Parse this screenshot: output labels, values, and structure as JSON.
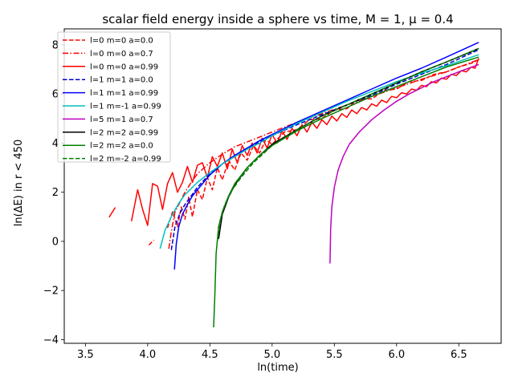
{
  "chart_data": {
    "type": "line",
    "title": "scalar field energy inside a sphere vs time, $M=1, \\mu=0.4$",
    "title_display": "scalar field energy inside a sphere vs time, M = 1, μ = 0.4",
    "xlabel": "ln(time)",
    "ylabel": "ln(ΔE) in r < 450",
    "xlim": [
      3.33,
      6.84
    ],
    "ylim": [
      -4.15,
      8.65
    ],
    "xticks": [
      "3.5",
      "4.0",
      "4.5",
      "5.0",
      "5.5",
      "6.0",
      "6.5"
    ],
    "xtick_values": [
      3.5,
      4.0,
      4.5,
      5.0,
      5.5,
      6.0,
      6.5
    ],
    "yticks": [
      "−4",
      "−2",
      "0",
      "2",
      "4",
      "6",
      "8"
    ],
    "ytick_values": [
      -4,
      -2,
      0,
      2,
      4,
      6,
      8
    ],
    "grid": false,
    "legend_position": "upper-left",
    "series": [
      {
        "name": "l=0 m=0 a=0.0",
        "color": "#ff0000",
        "dash": "dashed",
        "segments": [
          [
            [
              4.01,
              -0.15
            ],
            [
              4.05,
              0.05
            ]
          ],
          [
            [
              4.16,
              0.55
            ],
            [
              4.2,
              1.2
            ],
            [
              4.24,
              0.6
            ],
            [
              4.27,
              1.4
            ],
            [
              4.3,
              0.9
            ],
            [
              4.33,
              1.8
            ],
            [
              4.36,
              1.0
            ],
            [
              4.4,
              2.1
            ],
            [
              4.44,
              1.7
            ],
            [
              4.48,
              2.6
            ],
            [
              4.52,
              2.1
            ],
            [
              4.56,
              3.0
            ],
            [
              4.6,
              2.5
            ],
            [
              4.65,
              3.3
            ],
            [
              4.7,
              2.9
            ],
            [
              4.75,
              3.6
            ],
            [
              4.8,
              3.3
            ],
            [
              4.85,
              3.9
            ],
            [
              4.9,
              3.6
            ],
            [
              4.95,
              4.15
            ],
            [
              5.0,
              3.95
            ],
            [
              5.1,
              4.45
            ],
            [
              5.2,
              4.55
            ],
            [
              5.3,
              4.95
            ],
            [
              5.4,
              5.0
            ],
            [
              5.5,
              5.35
            ],
            [
              5.6,
              5.4
            ],
            [
              5.7,
              5.8
            ],
            [
              5.8,
              5.8
            ],
            [
              5.9,
              6.15
            ],
            [
              6.0,
              6.2
            ],
            [
              6.1,
              6.5
            ],
            [
              6.2,
              6.55
            ],
            [
              6.3,
              6.8
            ],
            [
              6.4,
              6.9
            ],
            [
              6.5,
              7.1
            ],
            [
              6.6,
              7.25
            ],
            [
              6.66,
              7.4
            ]
          ]
        ]
      },
      {
        "name": "l=0 m=0 a=0.7",
        "color": "#ff0000",
        "dash": "dashdot",
        "segments": [
          [
            [
              4.17,
              -0.3
            ],
            [
              4.19,
              0.4
            ],
            [
              4.22,
              1.2
            ],
            [
              4.26,
              1.6
            ],
            [
              4.3,
              2.0
            ],
            [
              4.35,
              2.4
            ],
            [
              4.4,
              2.75
            ],
            [
              4.5,
              3.2
            ],
            [
              4.6,
              3.55
            ],
            [
              4.7,
              3.85
            ],
            [
              4.8,
              4.05
            ],
            [
              4.9,
              4.25
            ],
            [
              5.0,
              4.45
            ],
            [
              5.2,
              4.85
            ],
            [
              5.4,
              5.2
            ],
            [
              5.6,
              5.55
            ],
            [
              5.8,
              5.9
            ],
            [
              6.0,
              6.25
            ],
            [
              6.2,
              6.6
            ],
            [
              6.4,
              6.9
            ],
            [
              6.66,
              7.4
            ]
          ]
        ]
      },
      {
        "name": "l=0 m=0 a=0.99",
        "color": "#ff0000",
        "dash": "solid",
        "segments": [
          [
            [
              3.69,
              0.98
            ],
            [
              3.74,
              1.38
            ]
          ],
          [
            [
              3.87,
              0.82
            ],
            [
              3.92,
              2.1
            ],
            [
              3.96,
              1.3
            ],
            [
              4.0,
              0.65
            ],
            [
              4.04,
              2.35
            ],
            [
              4.08,
              2.25
            ],
            [
              4.12,
              1.3
            ],
            [
              4.16,
              2.35
            ],
            [
              4.2,
              2.8
            ],
            [
              4.24,
              2.0
            ],
            [
              4.28,
              2.4
            ],
            [
              4.32,
              3.05
            ],
            [
              4.36,
              2.4
            ],
            [
              4.4,
              3.1
            ],
            [
              4.44,
              3.2
            ],
            [
              4.48,
              2.6
            ],
            [
              4.52,
              3.45
            ],
            [
              4.56,
              3.05
            ],
            [
              4.6,
              3.6
            ],
            [
              4.64,
              2.95
            ],
            [
              4.68,
              3.75
            ],
            [
              4.72,
              3.2
            ],
            [
              4.76,
              3.9
            ],
            [
              4.8,
              3.5
            ],
            [
              4.84,
              4.0
            ],
            [
              4.88,
              3.6
            ],
            [
              4.92,
              4.2
            ],
            [
              4.96,
              3.8
            ],
            [
              5.0,
              4.35
            ],
            [
              5.04,
              4.0
            ],
            [
              5.08,
              4.5
            ],
            [
              5.12,
              4.15
            ],
            [
              5.16,
              4.6
            ],
            [
              5.2,
              4.3
            ],
            [
              5.24,
              4.75
            ],
            [
              5.28,
              4.45
            ],
            [
              5.32,
              4.85
            ],
            [
              5.36,
              4.6
            ],
            [
              5.4,
              4.95
            ],
            [
              5.44,
              4.75
            ],
            [
              5.48,
              5.1
            ],
            [
              5.52,
              4.9
            ],
            [
              5.56,
              5.2
            ],
            [
              5.6,
              5.05
            ],
            [
              5.64,
              5.35
            ],
            [
              5.68,
              5.2
            ],
            [
              5.72,
              5.45
            ],
            [
              5.76,
              5.35
            ],
            [
              5.8,
              5.6
            ],
            [
              5.84,
              5.5
            ],
            [
              5.88,
              5.75
            ],
            [
              5.92,
              5.65
            ],
            [
              5.96,
              5.9
            ],
            [
              6.0,
              5.85
            ],
            [
              6.04,
              6.05
            ],
            [
              6.08,
              6.0
            ],
            [
              6.12,
              6.2
            ],
            [
              6.16,
              6.15
            ],
            [
              6.2,
              6.35
            ],
            [
              6.24,
              6.3
            ],
            [
              6.28,
              6.5
            ],
            [
              6.32,
              6.45
            ],
            [
              6.36,
              6.65
            ],
            [
              6.4,
              6.6
            ],
            [
              6.44,
              6.8
            ],
            [
              6.48,
              6.75
            ],
            [
              6.52,
              6.95
            ],
            [
              6.56,
              6.9
            ],
            [
              6.6,
              7.1
            ],
            [
              6.63,
              7.05
            ],
            [
              6.66,
              7.45
            ]
          ]
        ]
      },
      {
        "name": "l=1 m=1 a=0.0",
        "color": "#0000cc",
        "dash": "dashed",
        "segments": [
          [
            [
              4.19,
              -0.35
            ],
            [
              4.22,
              0.6
            ],
            [
              4.26,
              1.15
            ],
            [
              4.3,
              1.5
            ],
            [
              4.35,
              1.85
            ],
            [
              4.4,
              2.2
            ],
            [
              4.5,
              2.75
            ],
            [
              4.6,
              3.15
            ],
            [
              4.7,
              3.5
            ],
            [
              4.8,
              3.8
            ],
            [
              4.9,
              4.05
            ],
            [
              5.0,
              4.3
            ],
            [
              5.2,
              4.75
            ],
            [
              5.4,
              5.15
            ],
            [
              5.6,
              5.55
            ],
            [
              5.8,
              5.95
            ],
            [
              6.0,
              6.4
            ],
            [
              6.2,
              6.8
            ],
            [
              6.4,
              7.2
            ],
            [
              6.66,
              7.8
            ]
          ]
        ]
      },
      {
        "name": "l=1 m=1 a=0.99",
        "color": "#0000ff",
        "dash": "solid",
        "segments": [
          [
            [
              4.215,
              -1.15
            ],
            [
              4.23,
              -0.1
            ],
            [
              4.25,
              0.6
            ],
            [
              4.28,
              1.1
            ],
            [
              4.32,
              1.5
            ],
            [
              4.36,
              1.85
            ],
            [
              4.4,
              2.1
            ],
            [
              4.5,
              2.7
            ],
            [
              4.6,
              3.15
            ],
            [
              4.7,
              3.5
            ],
            [
              4.8,
              3.8
            ],
            [
              4.9,
              4.1
            ],
            [
              5.0,
              4.35
            ],
            [
              5.2,
              4.85
            ],
            [
              5.4,
              5.3
            ],
            [
              5.6,
              5.75
            ],
            [
              5.8,
              6.2
            ],
            [
              6.0,
              6.65
            ],
            [
              6.2,
              7.05
            ],
            [
              6.4,
              7.5
            ],
            [
              6.66,
              8.1
            ]
          ]
        ]
      },
      {
        "name": "l=1 m=-1 a=0.99",
        "color": "#00bfbf",
        "dash": "solid",
        "segments": [
          [
            [
              4.1,
              -0.3
            ],
            [
              4.14,
              0.45
            ],
            [
              4.2,
              1.1
            ],
            [
              4.25,
              1.55
            ],
            [
              4.3,
              1.9
            ],
            [
              4.4,
              2.4
            ],
            [
              4.5,
              2.8
            ],
            [
              4.6,
              3.15
            ],
            [
              4.7,
              3.45
            ],
            [
              4.8,
              3.75
            ],
            [
              4.9,
              4.0
            ],
            [
              5.0,
              4.3
            ],
            [
              5.2,
              4.8
            ],
            [
              5.4,
              5.25
            ],
            [
              5.6,
              5.7
            ],
            [
              5.8,
              6.1
            ],
            [
              6.0,
              6.5
            ],
            [
              6.2,
              6.85
            ],
            [
              6.4,
              7.15
            ],
            [
              6.66,
              7.6
            ]
          ]
        ]
      },
      {
        "name": "l=5 m=1 a=0.7",
        "color": "#bf00bf",
        "dash": "solid",
        "segments": [
          [
            [
              5.465,
              -0.9
            ],
            [
              5.47,
              0.5
            ],
            [
              5.48,
              1.4
            ],
            [
              5.5,
              2.2
            ],
            [
              5.53,
              2.9
            ],
            [
              5.57,
              3.45
            ],
            [
              5.62,
              3.95
            ],
            [
              5.7,
              4.45
            ],
            [
              5.8,
              4.95
            ],
            [
              5.9,
              5.35
            ],
            [
              6.0,
              5.7
            ],
            [
              6.1,
              6.0
            ],
            [
              6.2,
              6.25
            ],
            [
              6.3,
              6.5
            ],
            [
              6.4,
              6.7
            ],
            [
              6.5,
              6.9
            ],
            [
              6.66,
              7.2
            ]
          ]
        ]
      },
      {
        "name": "l=2 m=2 a=0.99",
        "color": "#000000",
        "dash": "solid",
        "segments": [
          [
            [
              4.57,
              0.1
            ],
            [
              4.6,
              1.1
            ],
            [
              4.65,
              1.8
            ],
            [
              4.7,
              2.3
            ],
            [
              4.8,
              3.0
            ],
            [
              4.9,
              3.5
            ],
            [
              5.0,
              3.95
            ],
            [
              5.2,
              4.55
            ],
            [
              5.4,
              5.1
            ],
            [
              5.6,
              5.55
            ],
            [
              5.8,
              6.0
            ],
            [
              6.0,
              6.45
            ],
            [
              6.2,
              6.9
            ],
            [
              6.4,
              7.3
            ],
            [
              6.66,
              7.85
            ]
          ]
        ]
      },
      {
        "name": "l=2 m=2 a=0.0",
        "color": "#008000",
        "dash": "solid",
        "segments": [
          [
            [
              4.53,
              -3.5
            ],
            [
              4.54,
              -2.2
            ],
            [
              4.55,
              -0.5
            ],
            [
              4.57,
              0.6
            ],
            [
              4.6,
              1.2
            ],
            [
              4.65,
              1.85
            ],
            [
              4.7,
              2.35
            ],
            [
              4.8,
              3.0
            ],
            [
              4.9,
              3.5
            ],
            [
              5.0,
              3.9
            ],
            [
              5.2,
              4.5
            ],
            [
              5.4,
              5.0
            ],
            [
              5.6,
              5.45
            ],
            [
              5.8,
              5.9
            ],
            [
              6.0,
              6.3
            ],
            [
              6.2,
              6.7
            ],
            [
              6.4,
              7.1
            ],
            [
              6.66,
              7.5
            ]
          ]
        ]
      },
      {
        "name": "l=2 m=-2 a=0.99",
        "color": "#008000",
        "dash": "dashed",
        "segments": [
          [
            [
              4.56,
              0.0
            ],
            [
              4.58,
              0.8
            ],
            [
              4.62,
              1.5
            ],
            [
              4.68,
              2.1
            ],
            [
              4.75,
              2.6
            ],
            [
              4.85,
              3.2
            ],
            [
              5.0,
              3.9
            ],
            [
              5.2,
              4.55
            ],
            [
              5.4,
              5.1
            ],
            [
              5.6,
              5.55
            ],
            [
              5.8,
              6.0
            ],
            [
              6.0,
              6.45
            ],
            [
              6.2,
              6.9
            ],
            [
              6.4,
              7.3
            ],
            [
              6.66,
              7.85
            ]
          ]
        ]
      }
    ]
  }
}
